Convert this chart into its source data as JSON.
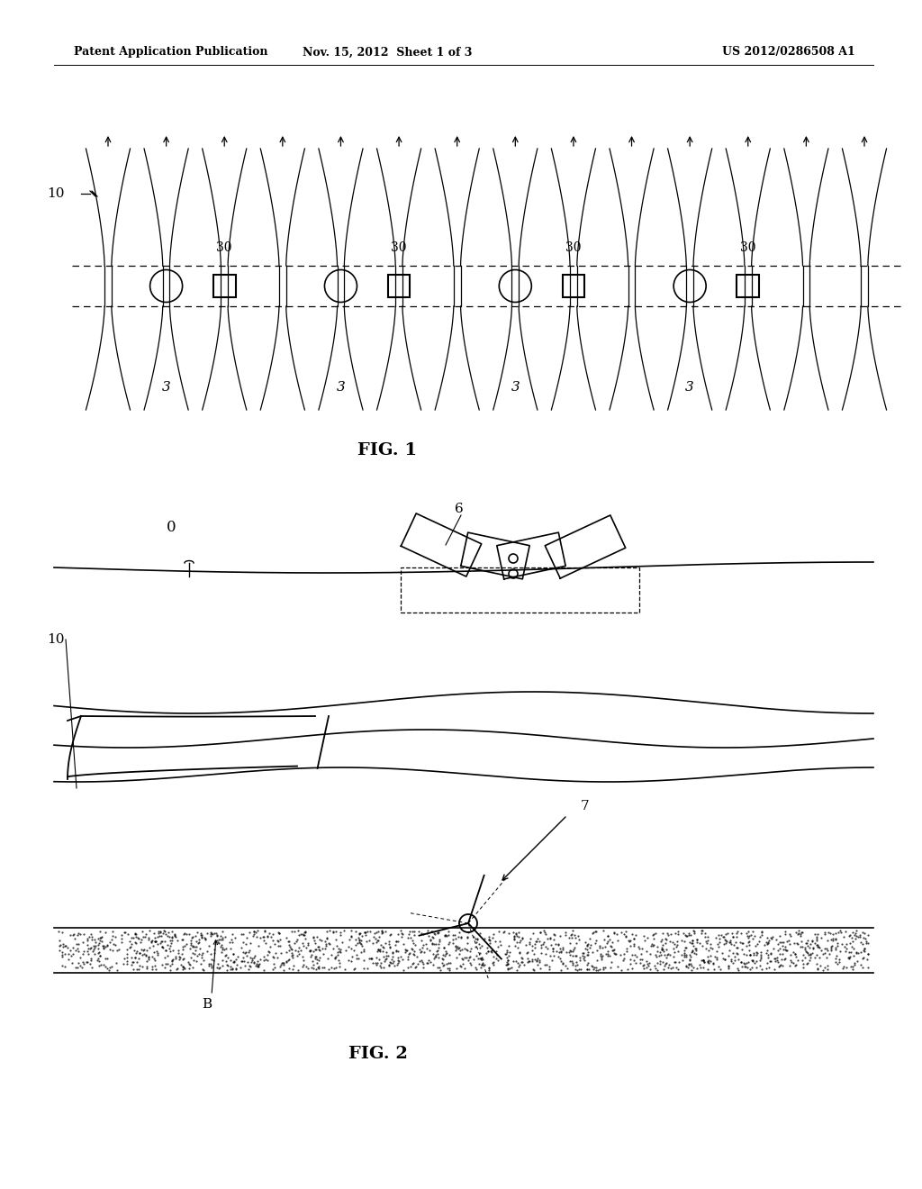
{
  "bg_color": "#ffffff",
  "header_left": "Patent Application Publication",
  "header_mid": "Nov. 15, 2012  Sheet 1 of 3",
  "header_right": "US 2012/0286508 A1",
  "fig1_label": "FIG. 1",
  "fig2_label": "FIG. 2",
  "label_10_fig1": "10",
  "label_3": "3",
  "label_30": "30",
  "label_0": "0",
  "label_6": "6",
  "label_7": "7",
  "label_10_fig2": "10",
  "label_B": "B"
}
